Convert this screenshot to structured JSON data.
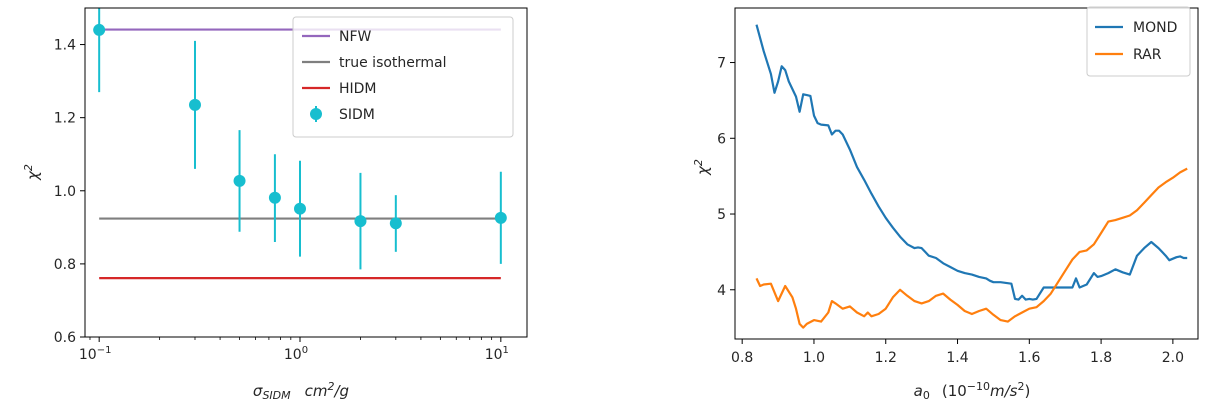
{
  "chart_data": [
    {
      "type": "scatter",
      "xlabel_parts": {
        "sigma": "σ",
        "sub": "SIDM",
        "unit_base": "cm",
        "unit_exp": "2",
        "unit_tail": "/g"
      },
      "ylabel_parts": {
        "base": "χ",
        "exp": "2"
      },
      "xscale": "log",
      "xlim": [
        0.085,
        13.5
      ],
      "ylim": [
        0.6,
        1.5
      ],
      "x_ticks": [
        {
          "value": 0.1,
          "base": "10",
          "exp": "−1"
        },
        {
          "value": 1,
          "base": "10",
          "exp": "0"
        },
        {
          "value": 10,
          "base": "10",
          "exp": "1"
        }
      ],
      "y_ticks": [
        {
          "value": 0.6,
          "label": "0.6"
        },
        {
          "value": 0.8,
          "label": "0.8"
        },
        {
          "value": 1.0,
          "label": "1.0"
        },
        {
          "value": 1.2,
          "label": "1.2"
        },
        {
          "value": 1.4,
          "label": "1.4"
        }
      ],
      "legend_position": "top-right",
      "lines": [
        {
          "name": "NFW",
          "color": "#9467bd",
          "x": [
            0.1,
            10
          ],
          "y": [
            1.441,
            1.441
          ]
        },
        {
          "name": "true isothermal",
          "color": "#7f7f7f",
          "x": [
            0.1,
            10
          ],
          "y": [
            0.924,
            0.924
          ]
        },
        {
          "name": "HIDM",
          "color": "#d62728",
          "x": [
            0.1,
            10
          ],
          "y": [
            0.761,
            0.761
          ]
        }
      ],
      "errorbar_series": {
        "name": "SIDM",
        "color": "#17becf",
        "points": [
          {
            "x": 0.1,
            "y": 1.44,
            "lo": 1.27,
            "hi": 1.61
          },
          {
            "x": 0.3,
            "y": 1.235,
            "lo": 1.06,
            "hi": 1.41
          },
          {
            "x": 0.5,
            "y": 1.027,
            "lo": 0.888,
            "hi": 1.166
          },
          {
            "x": 0.75,
            "y": 0.981,
            "lo": 0.86,
            "hi": 1.1
          },
          {
            "x": 1.0,
            "y": 0.951,
            "lo": 0.82,
            "hi": 1.082
          },
          {
            "x": 2.0,
            "y": 0.917,
            "lo": 0.785,
            "hi": 1.049
          },
          {
            "x": 3.0,
            "y": 0.911,
            "lo": 0.833,
            "hi": 0.988
          },
          {
            "x": 10.0,
            "y": 0.926,
            "lo": 0.8,
            "hi": 1.052
          }
        ]
      }
    },
    {
      "type": "line",
      "xlabel_parts": {
        "a": "a",
        "sub": "0",
        "paren_open": "(10",
        "exp": "−10",
        "unit": "m/s",
        "unit_exp": "2",
        "paren_close": ")"
      },
      "ylabel_parts": {
        "base": "χ",
        "exp": "2"
      },
      "xlim": [
        0.78,
        2.07
      ],
      "ylim": [
        3.35,
        7.72
      ],
      "x_ticks": [
        {
          "value": 0.8,
          "label": "0.8"
        },
        {
          "value": 1.0,
          "label": "1.0"
        },
        {
          "value": 1.2,
          "label": "1.2"
        },
        {
          "value": 1.4,
          "label": "1.4"
        },
        {
          "value": 1.6,
          "label": "1.6"
        },
        {
          "value": 1.8,
          "label": "1.8"
        },
        {
          "value": 2.0,
          "label": "2.0"
        }
      ],
      "y_ticks": [
        {
          "value": 4,
          "label": "4"
        },
        {
          "value": 5,
          "label": "5"
        },
        {
          "value": 6,
          "label": "6"
        },
        {
          "value": 7,
          "label": "7"
        }
      ],
      "legend_position": "top-right",
      "series": [
        {
          "name": "MOND",
          "color": "#1f77b4",
          "x": [
            0.84,
            0.86,
            0.88,
            0.89,
            0.9,
            0.91,
            0.92,
            0.93,
            0.95,
            0.96,
            0.97,
            0.98,
            0.99,
            1.0,
            1.01,
            1.02,
            1.04,
            1.05,
            1.06,
            1.07,
            1.08,
            1.1,
            1.12,
            1.14,
            1.16,
            1.18,
            1.2,
            1.22,
            1.24,
            1.26,
            1.28,
            1.29,
            1.3,
            1.31,
            1.32,
            1.34,
            1.36,
            1.38,
            1.4,
            1.42,
            1.44,
            1.46,
            1.48,
            1.49,
            1.5,
            1.52,
            1.55,
            1.56,
            1.57,
            1.58,
            1.59,
            1.6,
            1.61,
            1.62,
            1.64,
            1.66,
            1.68,
            1.7,
            1.72,
            1.73,
            1.74,
            1.76,
            1.78,
            1.79,
            1.8,
            1.81,
            1.82,
            1.84,
            1.86,
            1.88,
            1.9,
            1.92,
            1.94,
            1.96,
            1.97,
            1.98,
            1.99,
            2.0,
            2.01,
            2.02,
            2.03,
            2.04
          ],
          "y": [
            7.5,
            7.15,
            6.85,
            6.6,
            6.75,
            6.95,
            6.9,
            6.75,
            6.55,
            6.35,
            6.58,
            6.57,
            6.56,
            6.3,
            6.2,
            6.18,
            6.17,
            6.05,
            6.1,
            6.1,
            6.05,
            5.85,
            5.62,
            5.45,
            5.27,
            5.1,
            4.95,
            4.82,
            4.7,
            4.6,
            4.55,
            4.56,
            4.55,
            4.5,
            4.45,
            4.42,
            4.35,
            4.3,
            4.25,
            4.22,
            4.2,
            4.17,
            4.15,
            4.12,
            4.1,
            4.1,
            4.08,
            3.88,
            3.87,
            3.92,
            3.87,
            3.88,
            3.87,
            3.88,
            4.03,
            4.03,
            4.03,
            4.03,
            4.03,
            4.15,
            4.03,
            4.07,
            4.22,
            4.17,
            4.18,
            4.2,
            4.22,
            4.27,
            4.23,
            4.2,
            4.45,
            4.55,
            4.63,
            4.55,
            4.5,
            4.45,
            4.39,
            4.41,
            4.43,
            4.44,
            4.42,
            4.42
          ]
        },
        {
          "name": "RAR",
          "color": "#ff7f0e",
          "x": [
            0.84,
            0.85,
            0.86,
            0.88,
            0.9,
            0.92,
            0.94,
            0.95,
            0.96,
            0.97,
            0.98,
            1.0,
            1.02,
            1.04,
            1.05,
            1.06,
            1.08,
            1.1,
            1.12,
            1.14,
            1.15,
            1.16,
            1.18,
            1.2,
            1.22,
            1.24,
            1.26,
            1.28,
            1.3,
            1.32,
            1.34,
            1.36,
            1.38,
            1.4,
            1.42,
            1.44,
            1.46,
            1.48,
            1.5,
            1.52,
            1.54,
            1.56,
            1.58,
            1.6,
            1.62,
            1.64,
            1.66,
            1.68,
            1.7,
            1.72,
            1.74,
            1.76,
            1.78,
            1.8,
            1.82,
            1.84,
            1.86,
            1.88,
            1.9,
            1.92,
            1.94,
            1.96,
            1.98,
            2.0,
            2.02,
            2.04
          ],
          "y": [
            4.15,
            4.05,
            4.07,
            4.08,
            3.85,
            4.05,
            3.9,
            3.75,
            3.55,
            3.5,
            3.55,
            3.6,
            3.58,
            3.7,
            3.85,
            3.82,
            3.75,
            3.78,
            3.7,
            3.65,
            3.7,
            3.65,
            3.68,
            3.75,
            3.9,
            4.0,
            3.92,
            3.85,
            3.82,
            3.85,
            3.92,
            3.95,
            3.87,
            3.8,
            3.72,
            3.68,
            3.72,
            3.75,
            3.67,
            3.6,
            3.58,
            3.65,
            3.7,
            3.75,
            3.77,
            3.85,
            3.95,
            4.1,
            4.25,
            4.4,
            4.5,
            4.52,
            4.6,
            4.75,
            4.9,
            4.92,
            4.95,
            4.98,
            5.05,
            5.15,
            5.25,
            5.35,
            5.42,
            5.48,
            5.55,
            5.6
          ]
        }
      ]
    }
  ]
}
